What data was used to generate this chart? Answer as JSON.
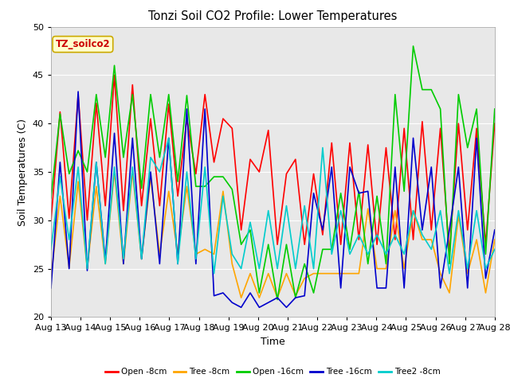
{
  "title": "Tonzi Soil CO2 Profile: Lower Temperatures",
  "xlabel": "Time",
  "ylabel": "Soil Temperatures (C)",
  "ylim": [
    20,
    50
  ],
  "xlim": [
    0,
    15
  ],
  "xtick_labels": [
    "Aug 13",
    "Aug 14",
    "Aug 15",
    "Aug 16",
    "Aug 17",
    "Aug 18",
    "Aug 19",
    "Aug 20",
    "Aug 21",
    "Aug 22",
    "Aug 23",
    "Aug 24",
    "Aug 25",
    "Aug 26",
    "Aug 27",
    "Aug 28"
  ],
  "annotation_text": "TZ_soilco2",
  "annotation_color": "#cc0000",
  "annotation_bg": "#ffffcc",
  "bg_color": "#e8e8e8",
  "legend_labels": [
    "Open -8cm",
    "Tree -8cm",
    "Open -16cm",
    "Tree -16cm",
    "Tree2 -8cm"
  ],
  "legend_colors": [
    "#ff0000",
    "#ffa500",
    "#00cc00",
    "#0000cc",
    "#00cccc"
  ],
  "open8": [
    30.0,
    41.2,
    30.2,
    43.0,
    30.0,
    42.1,
    31.5,
    45.0,
    31.0,
    44.0,
    31.5,
    40.5,
    31.5,
    42.0,
    32.5,
    40.5,
    34.8,
    43.0,
    36.0,
    40.5,
    39.5,
    29.0,
    36.3,
    35.0,
    39.3,
    27.5,
    34.8,
    36.3,
    27.5,
    34.8,
    28.5,
    38.0,
    27.5,
    38.0,
    28.0,
    37.8,
    27.5,
    37.5,
    28.0,
    39.5,
    28.0,
    40.2,
    29.0,
    39.5,
    26.5,
    40.0,
    29.0,
    39.5,
    27.5,
    40.0
  ],
  "tree8": [
    24.0,
    32.5,
    25.1,
    34.0,
    25.0,
    33.5,
    25.5,
    35.0,
    25.5,
    35.0,
    26.0,
    34.5,
    26.5,
    33.0,
    26.5,
    33.5,
    26.5,
    27.0,
    26.5,
    33.0,
    25.5,
    22.0,
    24.5,
    22.0,
    24.5,
    22.0,
    24.5,
    22.2,
    24.0,
    24.5,
    24.5,
    24.5,
    24.5,
    24.5,
    24.5,
    31.2,
    25.0,
    25.0,
    31.0,
    25.0,
    31.0,
    28.0,
    28.0,
    24.5,
    22.5,
    30.5,
    24.5,
    28.0,
    22.5,
    28.0
  ],
  "open16": [
    32.3,
    41.0,
    34.8,
    37.2,
    35.0,
    43.0,
    36.5,
    46.0,
    36.5,
    43.0,
    33.3,
    43.0,
    36.5,
    43.0,
    34.0,
    42.9,
    33.5,
    33.5,
    34.5,
    34.5,
    33.2,
    27.5,
    29.0,
    22.5,
    27.5,
    21.8,
    27.5,
    22.0,
    25.5,
    22.5,
    27.0,
    27.0,
    32.8,
    27.0,
    33.0,
    25.5,
    32.5,
    25.5,
    43.0,
    33.0,
    48.0,
    43.5,
    43.5,
    41.5,
    25.5,
    43.0,
    37.5,
    41.5,
    26.5,
    41.5
  ],
  "tree16": [
    23.0,
    36.0,
    25.0,
    43.3,
    24.8,
    36.0,
    25.8,
    39.0,
    25.5,
    38.5,
    26.0,
    35.0,
    25.5,
    38.5,
    25.5,
    41.5,
    25.5,
    41.5,
    22.2,
    22.5,
    21.5,
    21.0,
    22.5,
    21.0,
    21.5,
    22.0,
    21.0,
    22.0,
    22.2,
    32.8,
    29.0,
    35.5,
    23.0,
    35.5,
    32.8,
    33.0,
    23.0,
    23.0,
    35.5,
    23.0,
    38.5,
    29.0,
    35.5,
    23.0,
    29.0,
    35.5,
    23.0,
    38.5,
    24.0,
    29.0
  ],
  "tree2_8": [
    27.0,
    34.5,
    28.0,
    35.5,
    25.0,
    36.0,
    25.5,
    35.5,
    26.0,
    35.5,
    26.0,
    36.5,
    35.0,
    38.5,
    25.5,
    35.0,
    26.0,
    35.5,
    24.5,
    32.5,
    26.5,
    25.0,
    29.8,
    25.0,
    31.0,
    25.0,
    31.5,
    25.0,
    31.5,
    25.0,
    37.5,
    26.5,
    31.0,
    26.5,
    28.5,
    26.5,
    28.5,
    26.5,
    28.5,
    26.5,
    31.0,
    28.5,
    27.0,
    31.0,
    24.5,
    31.0,
    25.0,
    31.0,
    25.0,
    27.0
  ]
}
